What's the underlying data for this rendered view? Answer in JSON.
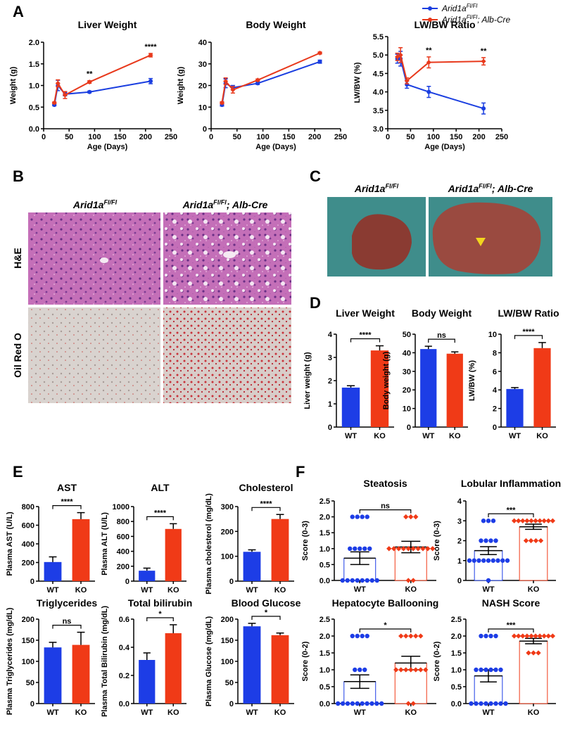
{
  "panel_labels": [
    "A",
    "B",
    "C",
    "D",
    "E",
    "F"
  ],
  "histology": {
    "columns": [
      {
        "name": "Arid1a",
        "sup": "Fl/Fl"
      },
      {
        "name": "Arid1a",
        "sup": "Fl/Fl",
        "suffix": "; Alb-Cre"
      }
    ],
    "rows": [
      "H&E",
      "Oil Red O"
    ]
  },
  "photos": {
    "columns": [
      {
        "name": "Arid1a",
        "sup": "Fl/Fl"
      },
      {
        "name": "Arid1a",
        "sup": "Fl/Fl",
        "suffix": "; Alb-Cre"
      }
    ]
  },
  "chart_data": [
    {
      "type": "line",
      "title": "Liver Weight",
      "xlabel": "Age (Days)",
      "ylabel": "Weight (g)",
      "xlim": [
        0,
        250
      ],
      "xticks": [
        0,
        50,
        100,
        150,
        200,
        250
      ],
      "ylim": [
        0,
        2
      ],
      "yticks": [
        {
          "value": 0,
          "label": "0.0"
        },
        0.5,
        {
          "value": 1,
          "label": "1.0"
        },
        1.5,
        {
          "value": 2,
          "label": "2.0"
        }
      ],
      "x": [
        21,
        28,
        42,
        90,
        210
      ],
      "series": [
        {
          "color": "#1a3ee0",
          "values": [
            0.55,
            1.0,
            0.8,
            0.85,
            1.1
          ],
          "errors": [
            0.02,
            0.12,
            0.04,
            0.02,
            0.06
          ]
        },
        {
          "color": "#e8391c",
          "values": [
            0.6,
            1.05,
            0.78,
            1.08,
            1.7
          ],
          "errors": [
            0.02,
            0.08,
            0.08,
            0.03,
            0.04
          ]
        }
      ],
      "annotations": [
        {
          "text": "**",
          "x": 90
        },
        {
          "text": "****",
          "x": 210
        }
      ]
    },
    {
      "type": "line",
      "title": "Body Weight",
      "xlabel": "Age (Days)",
      "ylabel": "Weight (g)",
      "xlim": [
        0,
        250
      ],
      "xticks": [
        0,
        50,
        100,
        150,
        200,
        250
      ],
      "ylim": [
        0,
        40
      ],
      "yticks": [
        0,
        10,
        20,
        30,
        40
      ],
      "x": [
        21,
        28,
        42,
        90,
        210
      ],
      "series": [
        {
          "color": "#1a3ee0",
          "values": [
            11,
            21,
            19,
            21,
            31
          ],
          "errors": [
            0.5,
            2,
            1,
            0.5,
            0.7
          ]
        },
        {
          "color": "#e8391c",
          "values": [
            12,
            22,
            18,
            22.5,
            35
          ],
          "errors": [
            0.5,
            1.5,
            1.5,
            0.5,
            0.5
          ]
        }
      ]
    },
    {
      "type": "line",
      "title": "LW/BW Ratio",
      "xlabel": "Age (Days)",
      "ylabel": "LW/BW (%)",
      "xlim": [
        0,
        250
      ],
      "xticks": [
        0,
        50,
        100,
        150,
        200,
        250
      ],
      "ylim": [
        3,
        5.5
      ],
      "yticks": [
        {
          "value": 3,
          "label": "3.0"
        },
        3.5,
        {
          "value": 4,
          "label": "4.0"
        },
        4.5,
        {
          "value": 5,
          "label": "5.0"
        },
        5.5
      ],
      "x": [
        21,
        28,
        42,
        90,
        210
      ],
      "legend": "top-right",
      "series": [
        {
          "name": "Arid1a",
          "name_sup": "Fl/Fl",
          "color": "#1a3ee0",
          "values": [
            4.9,
            4.9,
            4.2,
            4.0,
            3.55
          ],
          "errors": [
            0.12,
            0.2,
            0.1,
            0.15,
            0.15
          ]
        },
        {
          "name": "Arid1a",
          "name_sup": "Fl/Fl",
          "name_suffix": "; Alb-Cre",
          "color": "#e8391c",
          "values": [
            4.95,
            5.0,
            4.3,
            4.8,
            4.83
          ],
          "errors": [
            0.1,
            0.2,
            0.08,
            0.15,
            0.1
          ]
        }
      ],
      "annotations": [
        {
          "text": "**",
          "x": 90
        },
        {
          "text": "**",
          "x": 210
        }
      ]
    },
    {
      "type": "bar",
      "title": "Liver Weight",
      "ylabel": "Liver weight (g)",
      "categories": [
        "WT",
        "KO"
      ],
      "colors": [
        "#1d3de6",
        "#f03a17"
      ],
      "values": [
        1.7,
        3.3
      ],
      "errors": [
        0.08,
        0.2
      ],
      "ylim": [
        0,
        4
      ],
      "yticks": [
        0,
        1,
        2,
        3,
        4
      ],
      "significance": "****"
    },
    {
      "type": "bar",
      "title": "Body Weight",
      "ylabel": "Body weight (g)",
      "categories": [
        "WT",
        "KO"
      ],
      "colors": [
        "#1d3de6",
        "#f03a17"
      ],
      "values": [
        42,
        39.5
      ],
      "errors": [
        1.5,
        1
      ],
      "ylim": [
        0,
        50
      ],
      "yticks": [
        0,
        10,
        20,
        30,
        40,
        50
      ],
      "significance": "ns"
    },
    {
      "type": "bar",
      "title": "LW/BW Ratio",
      "ylabel": "LW/BW (%)",
      "categories": [
        "WT",
        "KO"
      ],
      "colors": [
        "#1d3de6",
        "#f03a17"
      ],
      "values": [
        4.1,
        8.5
      ],
      "errors": [
        0.15,
        0.6
      ],
      "ylim": [
        0,
        10
      ],
      "yticks": [
        0,
        2,
        4,
        6,
        8,
        10
      ],
      "significance": "****"
    },
    {
      "type": "bar",
      "title": "AST",
      "ylabel": "Plasma AST (U/L)",
      "categories": [
        "WT",
        "KO"
      ],
      "colors": [
        "#1d3de6",
        "#f03a17"
      ],
      "values": [
        205,
        665
      ],
      "errors": [
        55,
        70
      ],
      "ylim": [
        0,
        800
      ],
      "yticks": [
        0,
        200,
        400,
        600,
        800
      ],
      "significance": "****"
    },
    {
      "type": "bar",
      "title": "ALT",
      "ylabel": "Plasma ALT (U/L)",
      "categories": [
        "WT",
        "KO"
      ],
      "colors": [
        "#1d3de6",
        "#f03a17"
      ],
      "values": [
        140,
        700
      ],
      "errors": [
        35,
        70
      ],
      "ylim": [
        0,
        1000
      ],
      "yticks": [
        0,
        200,
        400,
        600,
        800,
        1000
      ],
      "significance": "****"
    },
    {
      "type": "bar",
      "title": "Cholesterol",
      "ylabel": "Plasma cholesterol (mg/dL)",
      "categories": [
        "WT",
        "KO"
      ],
      "colors": [
        "#1d3de6",
        "#f03a17"
      ],
      "values": [
        118,
        250
      ],
      "errors": [
        8,
        18
      ],
      "ylim": [
        0,
        300
      ],
      "yticks": [
        0,
        100,
        200,
        300
      ],
      "significance": "****"
    },
    {
      "type": "bar",
      "title": "Triglycerides",
      "ylabel": "Plasma Triglycerides (mg/dL)",
      "categories": [
        "WT",
        "KO"
      ],
      "colors": [
        "#1d3de6",
        "#f03a17"
      ],
      "values": [
        133,
        139
      ],
      "errors": [
        12,
        30
      ],
      "ylim": [
        0,
        200
      ],
      "yticks": [
        0,
        50,
        100,
        150,
        200
      ],
      "significance": "ns"
    },
    {
      "type": "bar",
      "title": "Total bilirubin",
      "ylabel": "Plasma Total Bilirubin (mg/dL)",
      "categories": [
        "WT",
        "KO"
      ],
      "colors": [
        "#1d3de6",
        "#f03a17"
      ],
      "values": [
        0.31,
        0.5
      ],
      "errors": [
        0.05,
        0.06
      ],
      "ylim": [
        0,
        0.6
      ],
      "yticks": [
        {
          "value": 0,
          "label": "0.0"
        },
        0.2,
        0.4,
        0.6
      ],
      "significance": "*"
    },
    {
      "type": "bar",
      "title": "Blood Glucose",
      "ylabel": "Plasma Glucose (mg/dL)",
      "categories": [
        "WT",
        "KO"
      ],
      "colors": [
        "#1d3de6",
        "#f03a17"
      ],
      "values": [
        183,
        162
      ],
      "errors": [
        7,
        5
      ],
      "ylim": [
        0,
        200
      ],
      "yticks": [
        0,
        50,
        100,
        150,
        200
      ],
      "significance": "*"
    },
    {
      "type": "dotbar",
      "title": "Steatosis",
      "ylabel": "Score (0-3)",
      "categories": [
        "WT",
        "KO"
      ],
      "colors": [
        "#1d3de6",
        "#f03a17"
      ],
      "values": [
        0.7,
        1.05
      ],
      "errors": [
        0.2,
        0.18
      ],
      "points": [
        [
          2,
          2,
          2,
          2,
          1,
          1,
          1,
          1,
          1,
          0,
          0,
          0,
          0,
          0,
          0,
          0,
          0
        ],
        [
          2,
          2,
          2,
          1,
          1,
          1,
          1,
          1,
          1,
          1,
          1,
          1,
          1,
          0,
          0
        ]
      ],
      "ylim": [
        0,
        2.5
      ],
      "yticks": [
        {
          "value": 0,
          "label": "0.0"
        },
        0.5,
        {
          "value": 1,
          "label": "1.0"
        },
        1.5,
        {
          "value": 2,
          "label": "2.0"
        },
        2.5
      ],
      "significance": "ns"
    },
    {
      "type": "dotbar",
      "title": "Lobular Inflammation",
      "ylabel": "Score (0-3)",
      "categories": [
        "WT",
        "KO"
      ],
      "colors": [
        "#1d3de6",
        "#f03a17"
      ],
      "values": [
        1.5,
        2.7
      ],
      "errors": [
        0.2,
        0.13
      ],
      "points": [
        [
          3,
          3,
          3,
          2,
          2,
          2,
          2,
          1,
          1,
          1,
          1,
          1,
          1,
          1,
          1,
          1,
          0
        ],
        [
          3,
          3,
          3,
          3,
          3,
          3,
          3,
          3,
          3,
          3,
          2,
          2,
          2,
          2
        ]
      ],
      "ylim": [
        0,
        4
      ],
      "yticks": [
        0,
        1,
        2,
        3,
        4
      ],
      "significance": "***"
    },
    {
      "type": "dotbar",
      "title": "Hepatocyte Ballooning",
      "ylabel": "Score (0-2)",
      "categories": [
        "WT",
        "KO"
      ],
      "colors": [
        "#1d3de6",
        "#f03a17"
      ],
      "values": [
        0.65,
        1.2
      ],
      "errors": [
        0.2,
        0.2
      ],
      "points": [
        [
          2,
          2,
          2,
          2,
          1,
          1,
          1,
          0,
          0,
          0,
          0,
          0,
          0,
          0,
          0,
          0,
          0
        ],
        [
          2,
          2,
          2,
          2,
          2,
          1,
          1,
          1,
          1,
          1,
          1,
          1,
          0,
          0
        ]
      ],
      "ylim": [
        0,
        2.5
      ],
      "yticks": [
        {
          "value": 0,
          "label": "0.0"
        },
        0.5,
        {
          "value": 1,
          "label": "1.0"
        },
        1.5,
        {
          "value": 2,
          "label": "2.0"
        },
        2.5
      ],
      "significance": "*"
    },
    {
      "type": "dotbar",
      "title": "NASH Score",
      "ylabel": "Score (0-2)",
      "categories": [
        "WT",
        "KO"
      ],
      "colors": [
        "#1d3de6",
        "#f03a17"
      ],
      "values": [
        0.82,
        1.85
      ],
      "errors": [
        0.18,
        0.08
      ],
      "points": [
        [
          2,
          2,
          2,
          2,
          1,
          1,
          1,
          1,
          1,
          1,
          0,
          0,
          0,
          0,
          0,
          0,
          0,
          0
        ],
        [
          2,
          2,
          2,
          2,
          2,
          2,
          2,
          2,
          2,
          2,
          1.5,
          1.5,
          1.5
        ]
      ],
      "ylim": [
        0,
        2.5
      ],
      "yticks": [
        {
          "value": 0,
          "label": "0.0"
        },
        0.5,
        {
          "value": 1,
          "label": "1.0"
        },
        1.5,
        {
          "value": 2,
          "label": "2.0"
        },
        2.5
      ],
      "significance": "***"
    }
  ]
}
